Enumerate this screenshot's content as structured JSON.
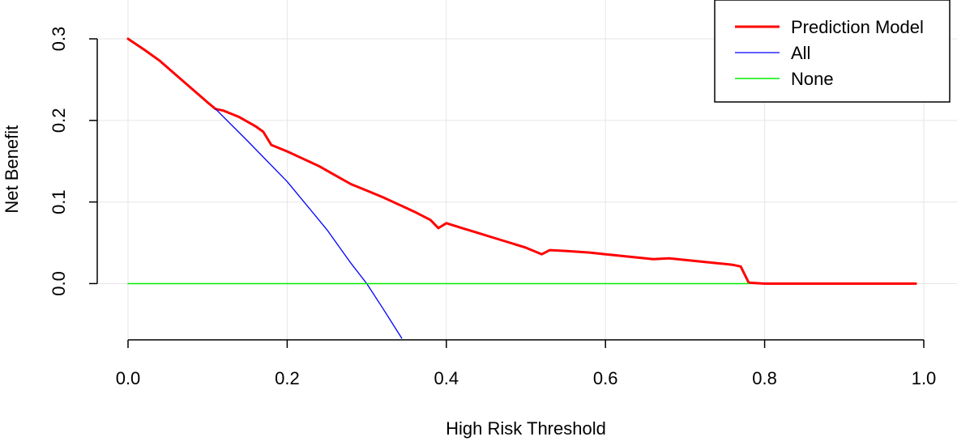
{
  "chart_data": {
    "type": "line",
    "title": "",
    "xlabel": "High Risk Threshold",
    "ylabel": "Net Benefit",
    "xlim": [
      0,
      1
    ],
    "ylim": [
      -0.067,
      0.3
    ],
    "x_ticks": [
      "0.0",
      "0.2",
      "0.4",
      "0.6",
      "0.8",
      "1.0"
    ],
    "y_ticks": [
      "0.0",
      "0.1",
      "0.2",
      "0.3"
    ],
    "grid": true,
    "legend_position": "top-right",
    "series": [
      {
        "name": "Prediction Model",
        "color": "#ff0000",
        "x": [
          0.0,
          0.02,
          0.04,
          0.06,
          0.08,
          0.1,
          0.11,
          0.12,
          0.14,
          0.16,
          0.17,
          0.18,
          0.2,
          0.22,
          0.24,
          0.26,
          0.28,
          0.3,
          0.32,
          0.34,
          0.36,
          0.38,
          0.39,
          0.4,
          0.42,
          0.44,
          0.46,
          0.48,
          0.5,
          0.52,
          0.53,
          0.55,
          0.58,
          0.6,
          0.62,
          0.64,
          0.66,
          0.68,
          0.7,
          0.72,
          0.74,
          0.76,
          0.77,
          0.78,
          0.8,
          0.85,
          0.9,
          0.95,
          0.99
        ],
        "y": [
          0.3,
          0.287,
          0.273,
          0.256,
          0.239,
          0.222,
          0.214,
          0.212,
          0.204,
          0.193,
          0.186,
          0.17,
          0.162,
          0.153,
          0.144,
          0.133,
          0.122,
          0.114,
          0.106,
          0.097,
          0.088,
          0.078,
          0.068,
          0.074,
          0.068,
          0.062,
          0.056,
          0.05,
          0.044,
          0.036,
          0.041,
          0.04,
          0.038,
          0.036,
          0.034,
          0.032,
          0.03,
          0.031,
          0.029,
          0.027,
          0.025,
          0.023,
          0.021,
          0.001,
          0.0,
          0.0,
          0.0,
          0.0,
          0.0
        ]
      },
      {
        "name": "All",
        "color": "#0000ff",
        "x": [
          0.11,
          0.15,
          0.2,
          0.25,
          0.28,
          0.3,
          0.32,
          0.344
        ],
        "y": [
          0.214,
          0.175,
          0.125,
          0.066,
          0.025,
          0.0,
          -0.03,
          -0.067
        ]
      },
      {
        "name": "None",
        "color": "#00ee00",
        "x": [
          0.0,
          0.78
        ],
        "y": [
          0.0,
          0.0
        ]
      }
    ]
  }
}
